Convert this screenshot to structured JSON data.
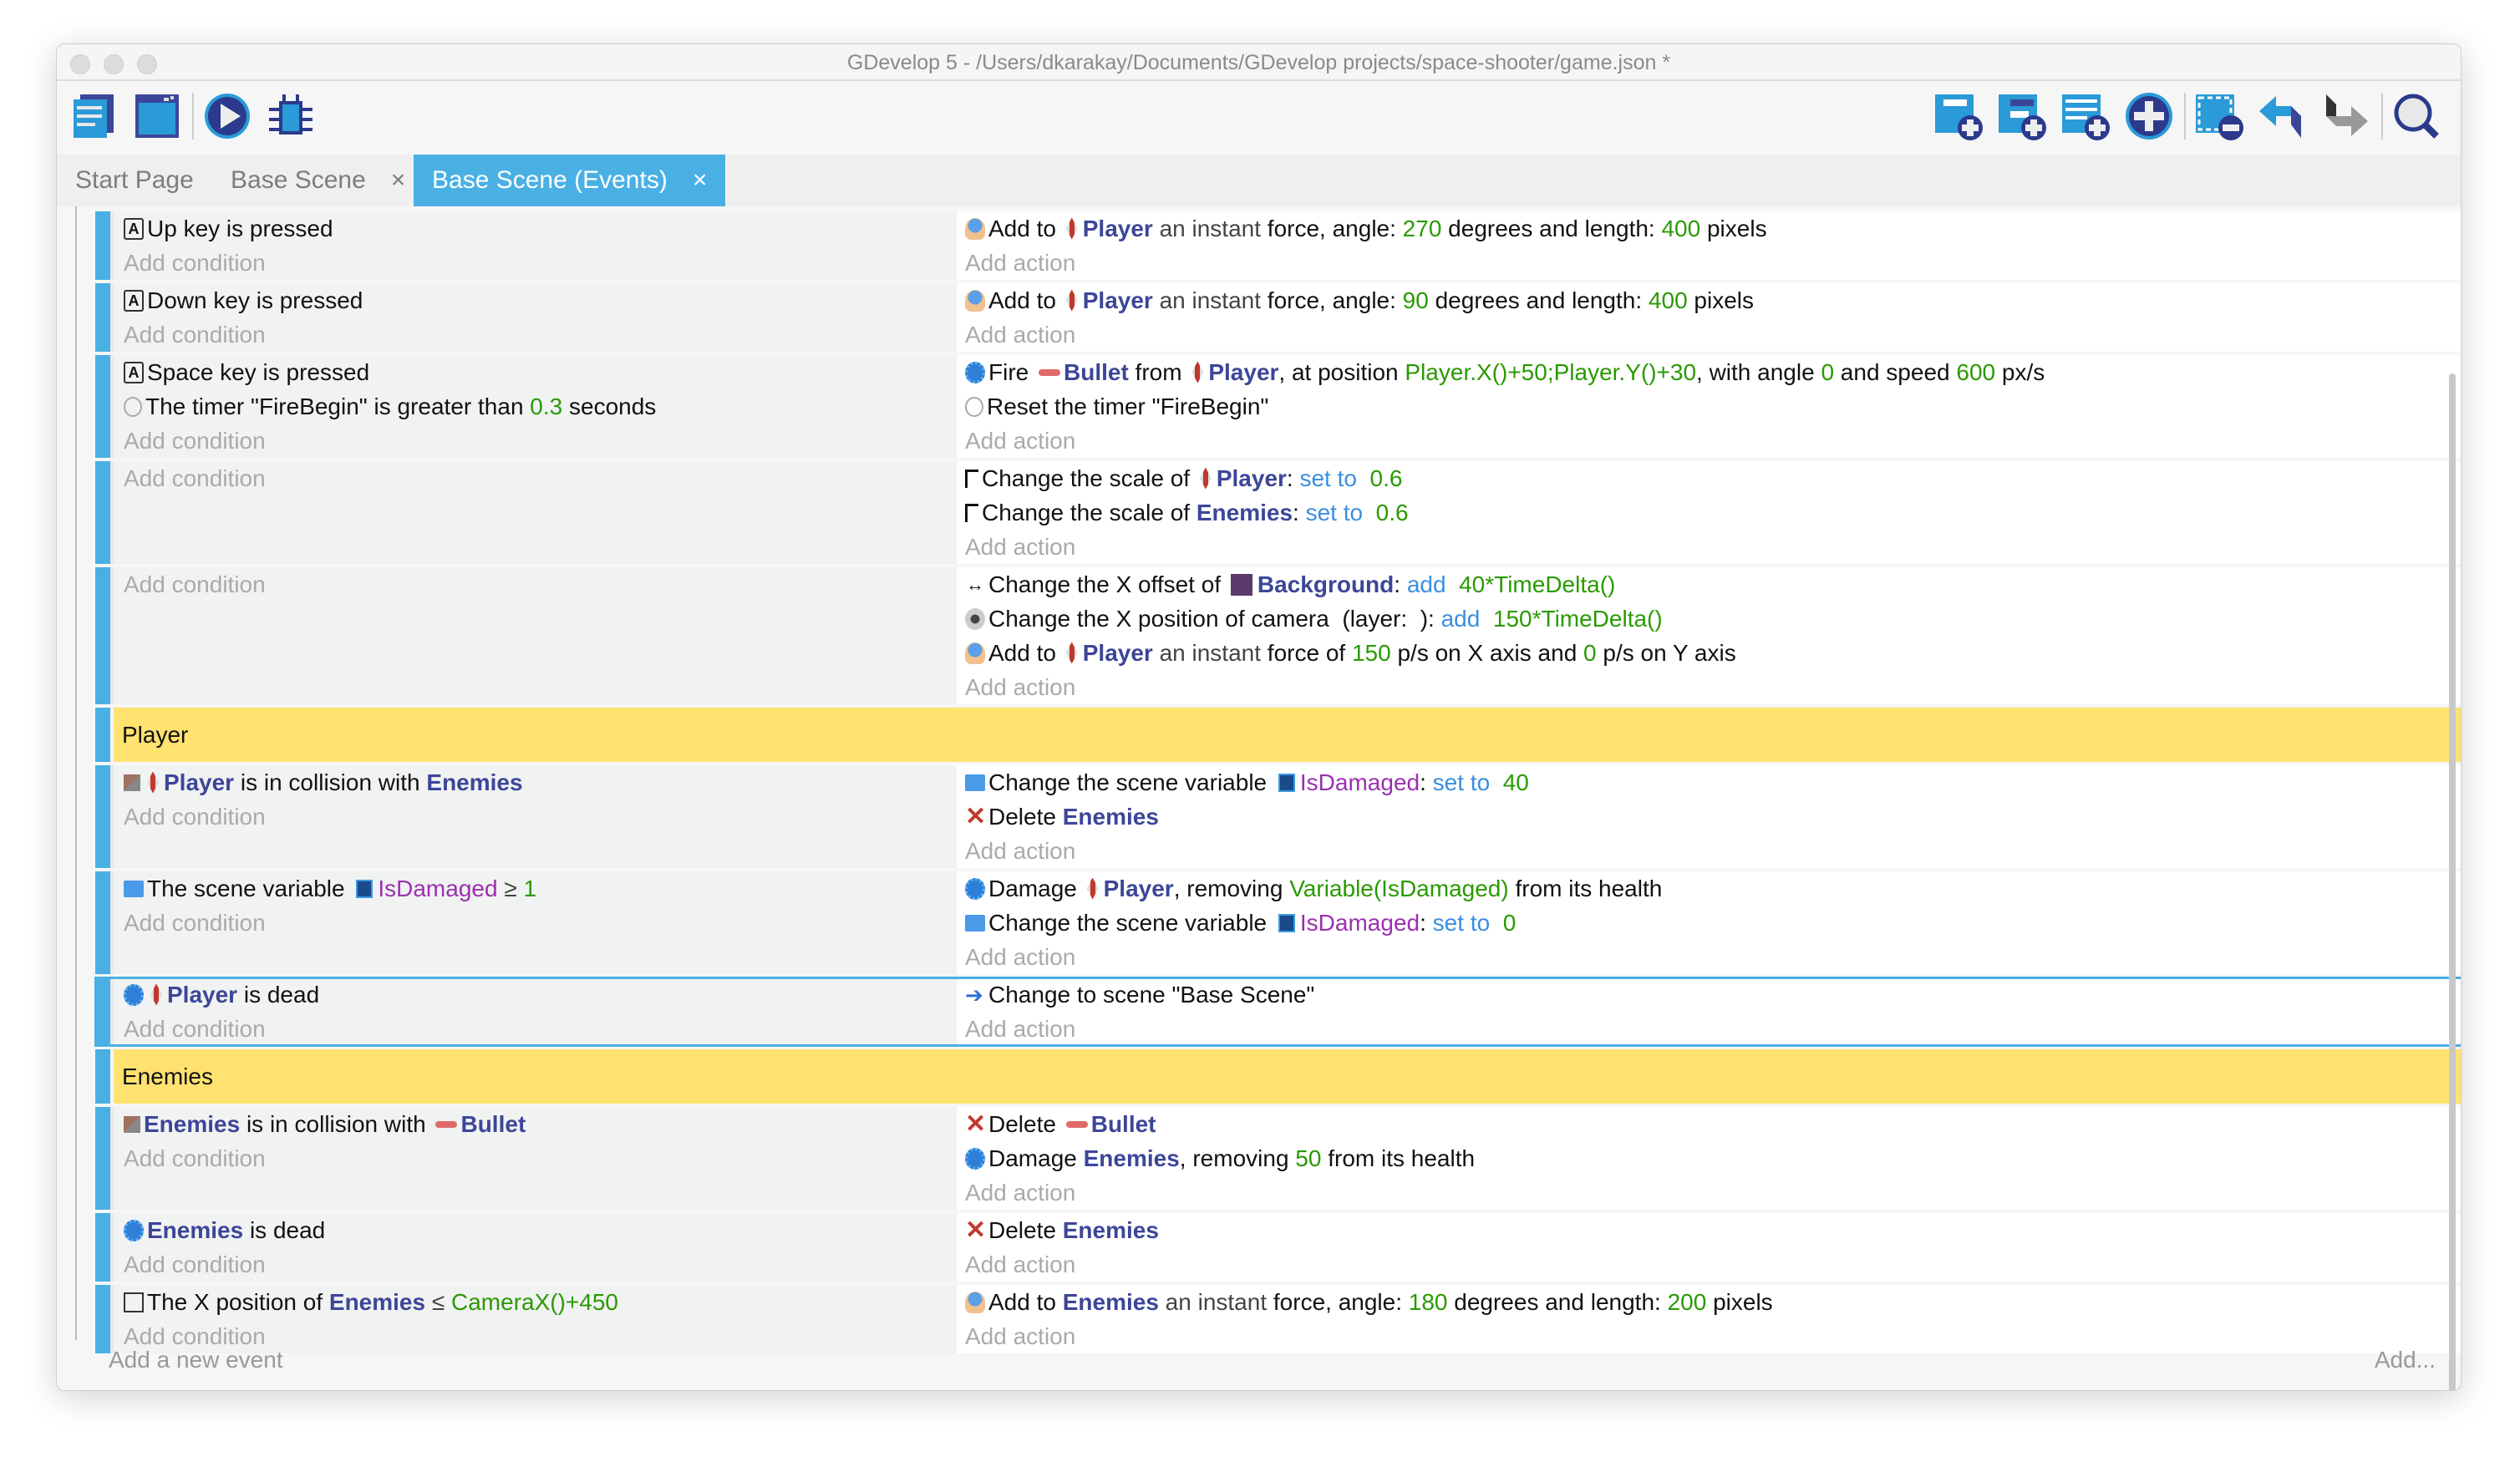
{
  "window": {
    "title": "GDevelop 5 - /Users/dkarakay/Documents/GDevelop projects/space-shooter/game.json *"
  },
  "toolbar": {
    "left": [
      "project-manager-icon",
      "scene-editor-icon",
      "preview-play-icon",
      "debugger-icon"
    ],
    "right": [
      "add-event-icon",
      "add-subevent-icon",
      "add-comment-icon",
      "add-other-icon",
      "delete-event-icon",
      "undo-icon",
      "redo-icon",
      "search-icon"
    ]
  },
  "tabs": [
    {
      "label": "Start Page",
      "active": false,
      "closable": false
    },
    {
      "label": "Base Scene",
      "active": false,
      "closable": true
    },
    {
      "label": "Base Scene (Events)",
      "active": true,
      "closable": true
    }
  ],
  "close_glyph": "×",
  "add_condition": "Add condition",
  "add_action": "Add action",
  "colors": {
    "accent": "#4ab0e4",
    "group": "#ffe26f",
    "object": "#3c4698",
    "number": "#2a9a00",
    "operator": "#3b8ee0",
    "variable": "#9b30b0"
  },
  "rows": [
    {
      "type": "event",
      "conditions": [
        {
          "icon": "key",
          "s": [
            {
              "t": "Up"
            },
            {
              "t": " key is pressed"
            }
          ]
        }
      ],
      "actions": [
        {
          "icon": "force",
          "s": [
            {
              "t": "Add to "
            },
            {
              "o": "player",
              "t": "Player",
              "k": "obj"
            },
            {
              "t": " an instant ",
              "k": "dim"
            },
            {
              "t": "force, angle: "
            },
            {
              "t": "270",
              "k": "num"
            },
            {
              "t": " degrees and length: "
            },
            {
              "t": "400",
              "k": "num"
            },
            {
              "t": " pixels"
            }
          ]
        }
      ]
    },
    {
      "type": "event",
      "conditions": [
        {
          "icon": "key",
          "s": [
            {
              "t": "Down"
            },
            {
              "t": " key is pressed"
            }
          ]
        }
      ],
      "actions": [
        {
          "icon": "force",
          "s": [
            {
              "t": "Add to "
            },
            {
              "o": "player",
              "t": "Player",
              "k": "obj"
            },
            {
              "t": " an instant ",
              "k": "dim"
            },
            {
              "t": "force, angle: "
            },
            {
              "t": "90",
              "k": "num"
            },
            {
              "t": " degrees and length: "
            },
            {
              "t": "400",
              "k": "num"
            },
            {
              "t": " pixels"
            }
          ]
        }
      ]
    },
    {
      "type": "event",
      "conditions": [
        {
          "icon": "key",
          "s": [
            {
              "t": "Space"
            },
            {
              "t": " key is pressed"
            }
          ]
        },
        {
          "icon": "timer",
          "s": [
            {
              "t": "The timer \"FireBegin\" is greater than "
            },
            {
              "t": "0.3",
              "k": "num"
            },
            {
              "t": " seconds"
            }
          ]
        }
      ],
      "actions": [
        {
          "icon": "gear",
          "s": [
            {
              "t": "Fire "
            },
            {
              "o": "bullet",
              "t": "Bullet",
              "k": "obj"
            },
            {
              "t": " from "
            },
            {
              "o": "player",
              "t": "Player",
              "k": "obj"
            },
            {
              "t": ", at position "
            },
            {
              "t": "Player.X()+50;Player.Y()+30",
              "k": "num"
            },
            {
              "t": ", with angle "
            },
            {
              "t": "0",
              "k": "num"
            },
            {
              "t": " and speed "
            },
            {
              "t": "600",
              "k": "num"
            },
            {
              "t": " px/s"
            }
          ]
        },
        {
          "icon": "timer",
          "s": [
            {
              "t": "Reset the timer \"FireBegin\""
            }
          ]
        }
      ]
    },
    {
      "type": "event",
      "conditions": [],
      "actions": [
        {
          "icon": "scale",
          "s": [
            {
              "t": "Change the scale of "
            },
            {
              "o": "player",
              "t": "Player",
              "k": "obj"
            },
            {
              "t": ": "
            },
            {
              "t": "set to",
              "k": "op"
            },
            {
              "t": "  0.6",
              "k": "num"
            }
          ]
        },
        {
          "icon": "scale",
          "s": [
            {
              "t": "Change the scale of "
            },
            {
              "t": "Enemies",
              "k": "obj"
            },
            {
              "t": ": "
            },
            {
              "t": "set to",
              "k": "op"
            },
            {
              "t": "  0.6",
              "k": "num"
            }
          ]
        }
      ]
    },
    {
      "type": "event",
      "conditions": [],
      "actions": [
        {
          "icon": "offset",
          "s": [
            {
              "t": "Change the X offset of "
            },
            {
              "o": "bg",
              "t": "Background",
              "k": "obj"
            },
            {
              "t": ": "
            },
            {
              "t": "add",
              "k": "op"
            },
            {
              "t": "  40*TimeDelta()",
              "k": "num"
            }
          ]
        },
        {
          "icon": "cam",
          "s": [
            {
              "t": "Change the X position of camera  (layer:  ): "
            },
            {
              "t": "add",
              "k": "op"
            },
            {
              "t": "  150*TimeDelta()",
              "k": "num"
            }
          ]
        },
        {
          "icon": "force",
          "s": [
            {
              "t": "Add to "
            },
            {
              "o": "player",
              "t": "Player",
              "k": "obj"
            },
            {
              "t": " an instant ",
              "k": "dim"
            },
            {
              "t": "force of "
            },
            {
              "t": "150",
              "k": "num"
            },
            {
              "t": " p/s on X axis and "
            },
            {
              "t": "0",
              "k": "num"
            },
            {
              "t": " p/s on Y axis"
            }
          ]
        }
      ]
    },
    {
      "type": "group",
      "label": "Player"
    },
    {
      "type": "event",
      "conditions": [
        {
          "icon": "collision",
          "s": [
            {
              "o": "player",
              "t": "Player",
              "k": "obj"
            },
            {
              "t": " is in collision with "
            },
            {
              "t": "Enemies",
              "k": "obj"
            }
          ]
        }
      ],
      "actions": [
        {
          "icon": "var",
          "s": [
            {
              "t": "Change the scene variable "
            },
            {
              "o": "varicon",
              "t": "IsDamaged",
              "k": "var"
            },
            {
              "t": ": "
            },
            {
              "t": "set to",
              "k": "op"
            },
            {
              "t": "  40",
              "k": "num"
            }
          ]
        },
        {
          "icon": "delete",
          "s": [
            {
              "t": "Delete "
            },
            {
              "t": "Enemies",
              "k": "obj"
            }
          ]
        }
      ]
    },
    {
      "type": "event",
      "conditions": [
        {
          "icon": "var",
          "s": [
            {
              "t": "The scene variable "
            },
            {
              "o": "varicon",
              "t": "IsDamaged",
              "k": "var"
            },
            {
              "t": " ≥ ",
              "k": "dim"
            },
            {
              "t": "1",
              "k": "num"
            }
          ]
        }
      ],
      "actions": [
        {
          "icon": "gear",
          "s": [
            {
              "t": "Damage "
            },
            {
              "o": "player",
              "t": "Player",
              "k": "obj"
            },
            {
              "t": ", removing "
            },
            {
              "t": "Variable(IsDamaged)",
              "k": "num"
            },
            {
              "t": " from its health"
            }
          ]
        },
        {
          "icon": "var",
          "s": [
            {
              "t": "Change the scene variable "
            },
            {
              "o": "varicon",
              "t": "IsDamaged",
              "k": "var"
            },
            {
              "t": ": "
            },
            {
              "t": "set to",
              "k": "op"
            },
            {
              "t": "  0",
              "k": "num"
            }
          ]
        }
      ]
    },
    {
      "type": "event",
      "selected": true,
      "conditions": [
        {
          "icon": "gear",
          "s": [
            {
              "o": "player",
              "t": "Player",
              "k": "obj"
            },
            {
              "t": " is dead"
            }
          ]
        }
      ],
      "actions": [
        {
          "icon": "scene",
          "s": [
            {
              "t": "Change to scene \"Base Scene\""
            }
          ]
        }
      ]
    },
    {
      "type": "group",
      "label": "Enemies"
    },
    {
      "type": "event",
      "conditions": [
        {
          "icon": "collision",
          "s": [
            {
              "t": "Enemies",
              "k": "obj"
            },
            {
              "t": " is in collision with "
            },
            {
              "o": "bullet",
              "t": "Bullet",
              "k": "obj"
            }
          ]
        }
      ],
      "actions": [
        {
          "icon": "delete",
          "s": [
            {
              "t": "Delete "
            },
            {
              "o": "bullet",
              "t": "Bullet",
              "k": "obj"
            }
          ]
        },
        {
          "icon": "gear",
          "s": [
            {
              "t": "Damage "
            },
            {
              "t": "Enemies",
              "k": "obj"
            },
            {
              "t": ", removing "
            },
            {
              "t": "50",
              "k": "num"
            },
            {
              "t": " from its health"
            }
          ]
        }
      ]
    },
    {
      "type": "event",
      "conditions": [
        {
          "icon": "gear",
          "s": [
            {
              "t": "Enemies",
              "k": "obj"
            },
            {
              "t": " is dead"
            }
          ]
        }
      ],
      "actions": [
        {
          "icon": "delete",
          "s": [
            {
              "t": "Delete "
            },
            {
              "t": "Enemies",
              "k": "obj"
            }
          ]
        }
      ]
    },
    {
      "type": "event",
      "conditions": [
        {
          "icon": "pos",
          "s": [
            {
              "t": "The X position of "
            },
            {
              "t": "Enemies",
              "k": "obj"
            },
            {
              "t": " ≤ ",
              "k": "dim"
            },
            {
              "t": "CameraX()+450",
              "k": "num"
            }
          ]
        }
      ],
      "actions": [
        {
          "icon": "force",
          "s": [
            {
              "t": "Add to "
            },
            {
              "t": "Enemies",
              "k": "obj"
            },
            {
              "t": " an instant ",
              "k": "dim"
            },
            {
              "t": "force, angle: "
            },
            {
              "t": "180",
              "k": "num"
            },
            {
              "t": " degrees and length: "
            },
            {
              "t": "200",
              "k": "num"
            },
            {
              "t": " pixels"
            }
          ]
        }
      ]
    }
  ],
  "footer": {
    "add_event": "Add a new event",
    "add_more": "Add..."
  }
}
